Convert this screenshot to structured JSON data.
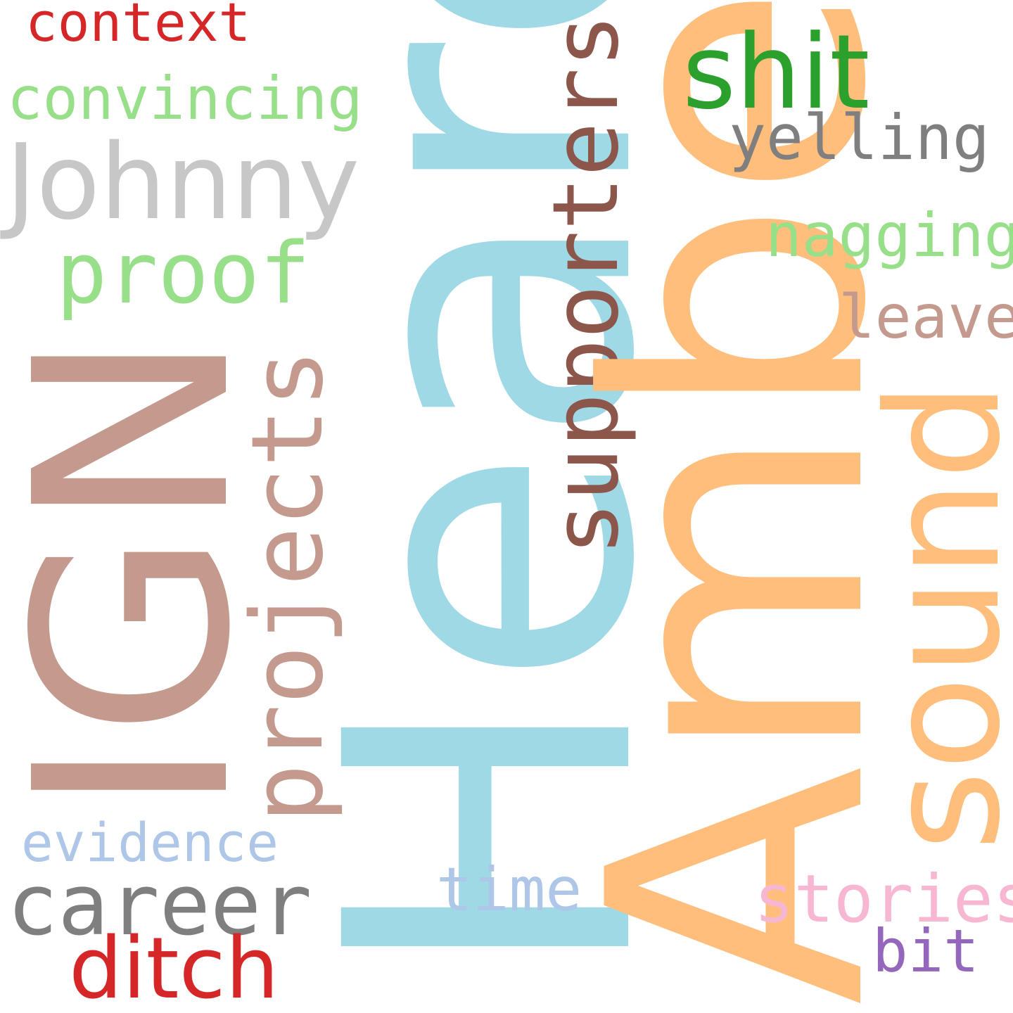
{
  "words": {
    "ign": {
      "text": "IGN",
      "color": "#c49a8e"
    },
    "heard": {
      "text": "Heard",
      "color": "#9ed9e5"
    },
    "amber": {
      "text": "Amber",
      "color": "#ffbe7b"
    },
    "sound": {
      "text": "sound",
      "color": "#ffbe7b"
    },
    "johnny": {
      "text": "Johnny",
      "color": "#c7c7c7"
    },
    "shit": {
      "text": "shit",
      "color": "#2ca02c"
    },
    "projects": {
      "text": "projects",
      "color": "#c49a8e"
    },
    "supporters": {
      "text": "supporters",
      "color": "#8c564b"
    },
    "proof": {
      "text": "proof",
      "color": "#98df8a"
    },
    "career": {
      "text": "career",
      "color": "#7f7f7f"
    },
    "ditch": {
      "text": "ditch",
      "color": "#d62728"
    },
    "stories": {
      "text": "stories",
      "color": "#f7b6d2"
    },
    "yelling": {
      "text": "yelling",
      "color": "#7f7f7f"
    },
    "nagging": {
      "text": "nagging",
      "color": "#98df8a"
    },
    "leave": {
      "text": "leave",
      "color": "#c49a8e"
    },
    "time": {
      "text": "time",
      "color": "#aec7e8"
    },
    "evidence": {
      "text": "evidence",
      "color": "#aec7e8"
    },
    "convincing": {
      "text": "convincing",
      "color": "#98df8a"
    },
    "context": {
      "text": "context",
      "color": "#d62728"
    },
    "bit": {
      "text": "bit",
      "color": "#9467bd"
    }
  }
}
